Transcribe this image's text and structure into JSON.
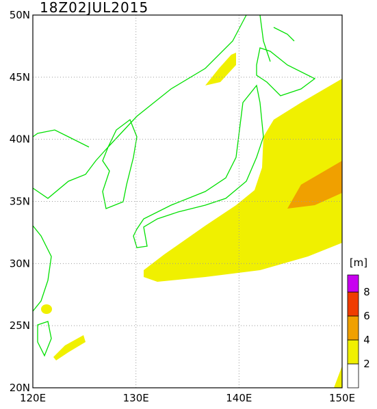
{
  "title": "18Z02JUL2015",
  "map": {
    "xlim": [
      120,
      150
    ],
    "ylim": [
      20,
      50
    ],
    "xticks": [
      {
        "value": 120,
        "label": "120E"
      },
      {
        "value": 130,
        "label": "130E"
      },
      {
        "value": 140,
        "label": "140E"
      },
      {
        "value": 150,
        "label": "150E"
      }
    ],
    "yticks": [
      {
        "value": 20,
        "label": "20N"
      },
      {
        "value": 25,
        "label": "25N"
      },
      {
        "value": 30,
        "label": "30N"
      },
      {
        "value": 35,
        "label": "35N"
      },
      {
        "value": 40,
        "label": "40N"
      },
      {
        "value": 45,
        "label": "45N"
      },
      {
        "value": 50,
        "label": "50N"
      }
    ]
  },
  "colorbar": {
    "unit": "[m]",
    "levels": [
      2,
      4,
      6,
      8
    ],
    "colors": [
      "#ffffff",
      "#f0f000",
      "#f0a000",
      "#f03c00",
      "#c800f0"
    ]
  }
}
